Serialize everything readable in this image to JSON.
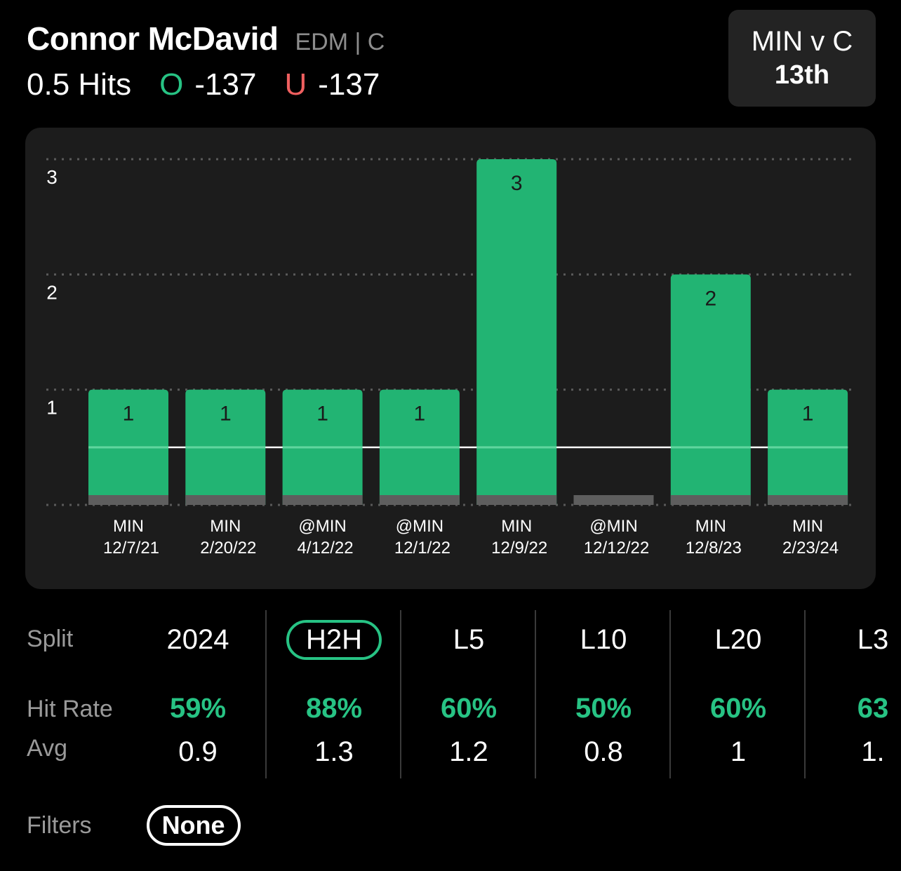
{
  "header": {
    "player_name": "Connor McDavid",
    "team_position": "EDM | C",
    "line_label": "0.5 Hits",
    "over_mark": "O",
    "over_odds": "-137",
    "under_mark": "U",
    "under_odds": "-137"
  },
  "matchup": {
    "title": "MIN v C",
    "rank": "13th"
  },
  "chart_data": {
    "type": "bar",
    "categories": [
      "MIN 12/7/21",
      "MIN 2/20/22",
      "@MIN 4/12/22",
      "@MIN 12/1/22",
      "MIN 12/9/22",
      "@MIN 12/12/22",
      "MIN 12/8/23",
      "MIN 2/23/24"
    ],
    "opponents": [
      "MIN",
      "MIN",
      "@MIN",
      "@MIN",
      "MIN",
      "@MIN",
      "MIN",
      "MIN"
    ],
    "dates": [
      "12/7/21",
      "2/20/22",
      "4/12/22",
      "12/1/22",
      "12/9/22",
      "12/12/22",
      "12/8/23",
      "2/23/24"
    ],
    "values": [
      1,
      1,
      1,
      1,
      3,
      0,
      2,
      1
    ],
    "value_labels": [
      "1",
      "1",
      "1",
      "1",
      "3",
      "",
      "2",
      "1"
    ],
    "y_ticks": [
      "1",
      "2",
      "3"
    ],
    "ylim": [
      0,
      3
    ],
    "line_value": 0.5,
    "grid": true,
    "colors": {
      "over": "#22b473",
      "under": "#5e5e5e",
      "base": "#5e5e5e",
      "line": "#ffffff"
    }
  },
  "splits": {
    "row_labels": {
      "split": "Split",
      "hit_rate": "Hit Rate",
      "avg": "Avg"
    },
    "columns": [
      {
        "name": "2024",
        "hit_rate": "59%",
        "avg": "0.9",
        "active": false
      },
      {
        "name": "H2H",
        "hit_rate": "88%",
        "avg": "1.3",
        "active": true
      },
      {
        "name": "L5",
        "hit_rate": "60%",
        "avg": "1.2",
        "active": false
      },
      {
        "name": "L10",
        "hit_rate": "50%",
        "avg": "0.8",
        "active": false
      },
      {
        "name": "L20",
        "hit_rate": "60%",
        "avg": "1",
        "active": false
      },
      {
        "name": "L3",
        "hit_rate": "63",
        "avg": "1.",
        "active": false
      }
    ]
  },
  "filters": {
    "label": "Filters",
    "value": "None"
  }
}
